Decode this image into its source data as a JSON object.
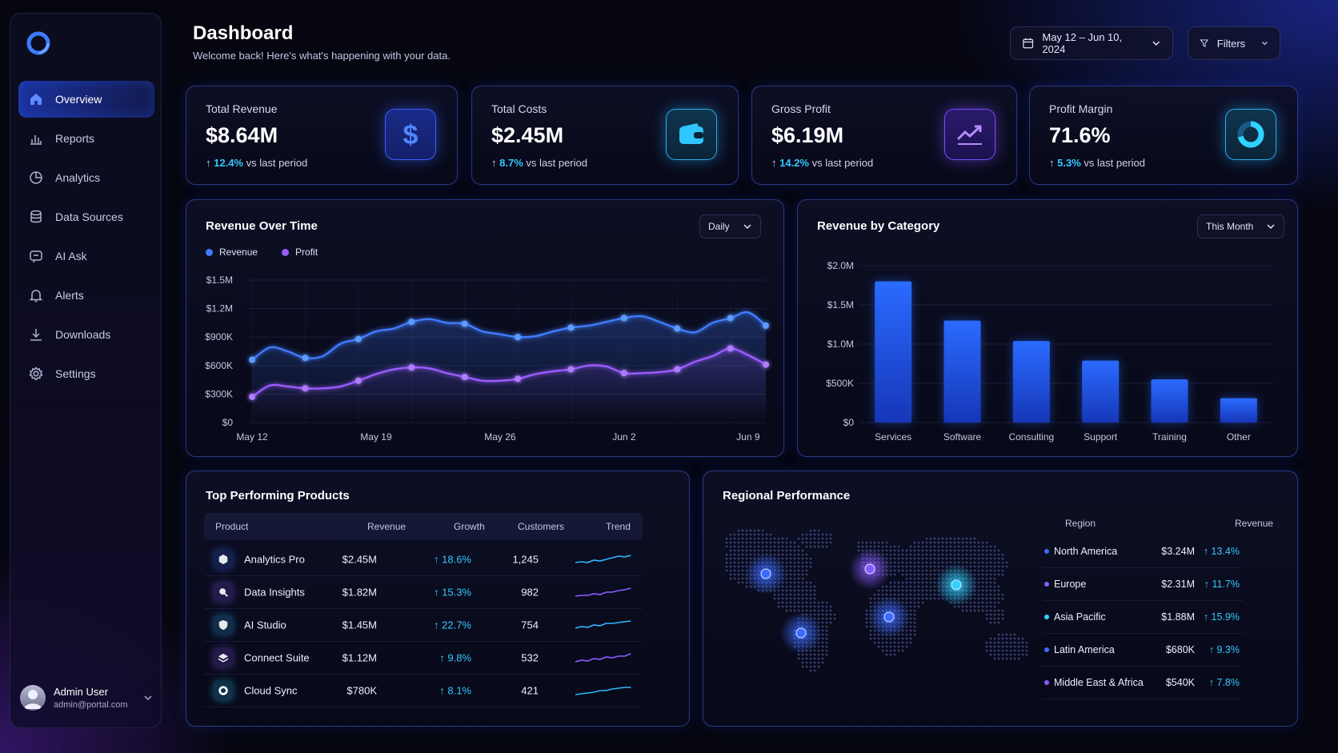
{
  "header": {
    "title": "Dashboard",
    "subtitle": "Welcome back! Here's what's happening with your data.",
    "date_range": "May 12 – Jun 10, 2024",
    "filters_label": "Filters"
  },
  "sidebar": {
    "items": [
      {
        "label": "Overview",
        "icon": "home-icon",
        "active": true
      },
      {
        "label": "Reports",
        "icon": "bar-chart-icon"
      },
      {
        "label": "Analytics",
        "icon": "pie-chart-icon"
      },
      {
        "label": "Data Sources",
        "icon": "database-icon"
      },
      {
        "label": "AI Ask",
        "icon": "ai-chat-icon"
      },
      {
        "label": "Alerts",
        "icon": "bell-icon"
      },
      {
        "label": "Downloads",
        "icon": "download-icon"
      },
      {
        "label": "Settings",
        "icon": "gear-icon"
      }
    ],
    "user": {
      "name": "Admin User",
      "email": "admin@portal.com"
    }
  },
  "kpis": [
    {
      "label": "Total Revenue",
      "value": "$8.64M",
      "delta": "12.4%",
      "delta_suffix": "vs last period",
      "icon": "dollar-icon"
    },
    {
      "label": "Total Costs",
      "value": "$2.45M",
      "delta": "8.7%",
      "delta_suffix": "vs last period",
      "icon": "wallet-icon"
    },
    {
      "label": "Gross Profit",
      "value": "$6.19M",
      "delta": "14.2%",
      "delta_suffix": "vs last period",
      "icon": "trend-up-icon"
    },
    {
      "label": "Profit Margin",
      "value": "71.6%",
      "delta": "5.3%",
      "delta_suffix": "vs last period",
      "icon": "donut-icon"
    }
  ],
  "revenue_over_time": {
    "title": "Revenue Over Time",
    "period_select": "Daily",
    "legend": [
      "Revenue",
      "Profit"
    ]
  },
  "revenue_by_category": {
    "title": "Revenue by Category",
    "period_select": "This Month"
  },
  "chart_data": [
    {
      "type": "line",
      "x": [
        "May 12",
        "May 13",
        "May 14",
        "May 15",
        "May 16",
        "May 17",
        "May 18",
        "May 19",
        "May 20",
        "May 21",
        "May 22",
        "May 23",
        "May 24",
        "May 25",
        "May 26",
        "May 27",
        "May 28",
        "May 29",
        "May 30",
        "May 31",
        "Jun 1",
        "Jun 2",
        "Jun 3",
        "Jun 4",
        "Jun 5",
        "Jun 6",
        "Jun 7",
        "Jun 8",
        "Jun 9",
        "Jun 10"
      ],
      "series": [
        {
          "name": "Revenue",
          "values": [
            660000,
            790000,
            750000,
            680000,
            700000,
            830000,
            880000,
            960000,
            990000,
            1060000,
            1090000,
            1050000,
            1040000,
            960000,
            930000,
            900000,
            910000,
            960000,
            1000000,
            1020000,
            1060000,
            1100000,
            1120000,
            1060000,
            990000,
            950000,
            1050000,
            1100000,
            1160000,
            1020000
          ]
        },
        {
          "name": "Profit",
          "values": [
            270000,
            390000,
            380000,
            360000,
            360000,
            380000,
            440000,
            510000,
            560000,
            580000,
            570000,
            520000,
            480000,
            440000,
            440000,
            460000,
            510000,
            540000,
            560000,
            600000,
            590000,
            520000,
            520000,
            530000,
            560000,
            640000,
            700000,
            780000,
            710000,
            610000
          ]
        }
      ],
      "x_tick_labels": [
        "May 12",
        "May 19",
        "May 26",
        "Jun 2",
        "Jun 9"
      ],
      "y_tick_labels": [
        "$0",
        "$300K",
        "$600K",
        "$900K",
        "$1.2M",
        "$1.5M"
      ],
      "ylim": [
        0,
        1500000
      ],
      "grid": true,
      "legend": "top-left"
    },
    {
      "type": "bar",
      "categories": [
        "Services",
        "Software",
        "Consulting",
        "Support",
        "Training",
        "Other"
      ],
      "values": [
        1800000,
        1300000,
        1040000,
        790000,
        550000,
        310000
      ],
      "y_tick_labels": [
        "$0",
        "$500K",
        "$1.0M",
        "$1.5M",
        "$2.0M"
      ],
      "ylim": [
        0,
        2000000
      ],
      "grid": true
    }
  ],
  "top_products": {
    "title": "Top Performing Products",
    "columns": [
      "Product",
      "Revenue",
      "Growth",
      "Customers",
      "Trend"
    ],
    "rows": [
      {
        "product": "Analytics Pro",
        "revenue": "$2.45M",
        "growth": "18.6%",
        "customers": "1,245",
        "icon": "cube-icon",
        "color": "#3b6bff"
      },
      {
        "product": "Data Insights",
        "revenue": "$1.82M",
        "growth": "15.3%",
        "customers": "982",
        "icon": "magnify-icon",
        "color": "#8a5cff"
      },
      {
        "product": "AI Studio",
        "revenue": "$1.45M",
        "growth": "22.7%",
        "customers": "754",
        "icon": "shield-icon",
        "color": "#2fb8ff"
      },
      {
        "product": "Connect Suite",
        "revenue": "$1.12M",
        "growth": "9.8%",
        "customers": "532",
        "icon": "layers-icon",
        "color": "#8a5cff"
      },
      {
        "product": "Cloud Sync",
        "revenue": "$780K",
        "growth": "8.1%",
        "customers": "421",
        "icon": "ring-icon",
        "color": "#2fd3ff"
      }
    ]
  },
  "regional": {
    "title": "Regional Performance",
    "columns": [
      "Region",
      "Revenue"
    ],
    "rows": [
      {
        "region": "North America",
        "revenue": "$3.24M",
        "growth": "13.4%",
        "color": "#3b6bff"
      },
      {
        "region": "Europe",
        "revenue": "$2.31M",
        "growth": "11.7%",
        "color": "#8a5cff"
      },
      {
        "region": "Asia Pacific",
        "revenue": "$1.88M",
        "growth": "15.9%",
        "color": "#2fd3ff"
      },
      {
        "region": "Latin America",
        "revenue": "$680K",
        "growth": "9.3%",
        "color": "#3b6bff"
      },
      {
        "region": "Middle East & Africa",
        "revenue": "$540K",
        "growth": "7.8%",
        "color": "#8a5cff"
      }
    ]
  },
  "colors": {
    "accent": "#2f6bff",
    "revenue": "#3f7bff",
    "profit": "#9a5cff",
    "positive": "#37c8ff"
  }
}
